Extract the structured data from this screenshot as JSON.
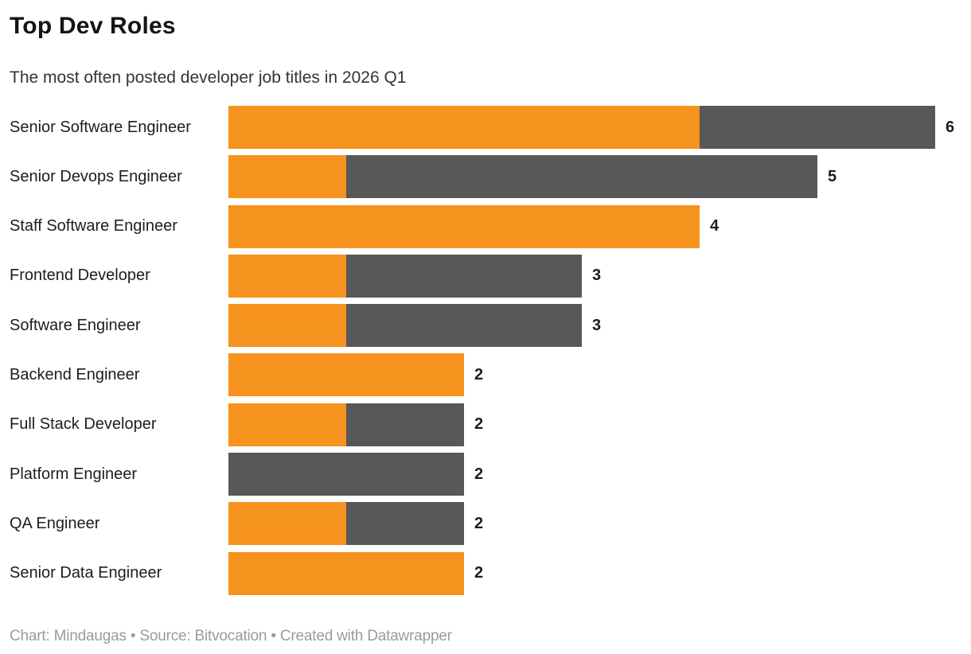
{
  "header": {
    "title": "Top Dev Roles",
    "subtitle": "The most often posted developer job titles in 2026 Q1"
  },
  "footer": {
    "text": "Chart: Mindaugas • Source: Bitvocation • Created with Datawrapper"
  },
  "colors": {
    "accent_orange": "#F6921E",
    "accent_gray": "#58585A",
    "text_dark": "#1d1d1d",
    "footer_text": "#9b9b9b"
  },
  "chart_data": {
    "type": "bar",
    "orientation": "horizontal",
    "stacked": true,
    "grid": false,
    "legend": "none",
    "xlim": [
      0,
      6
    ],
    "categories": [
      "Senior Software Engineer",
      "Senior Devops Engineer",
      "Staff Software Engineer",
      "Frontend Developer",
      "Software Engineer",
      "Backend Engineer",
      "Full Stack Developer",
      "Platform Engineer",
      "QA Engineer",
      "Senior Data Engineer"
    ],
    "series": [
      {
        "name": "orange-segment",
        "color": "#F6921E",
        "values": [
          4,
          1,
          4,
          1,
          1,
          2,
          1,
          0,
          1,
          2
        ]
      },
      {
        "name": "gray-segment",
        "color": "#58585A",
        "values": [
          2,
          4,
          0,
          2,
          2,
          0,
          1,
          2,
          1,
          0
        ]
      }
    ],
    "totals": [
      6,
      5,
      4,
      3,
      3,
      2,
      2,
      2,
      2,
      2
    ],
    "value_label_position": "outside-end"
  }
}
